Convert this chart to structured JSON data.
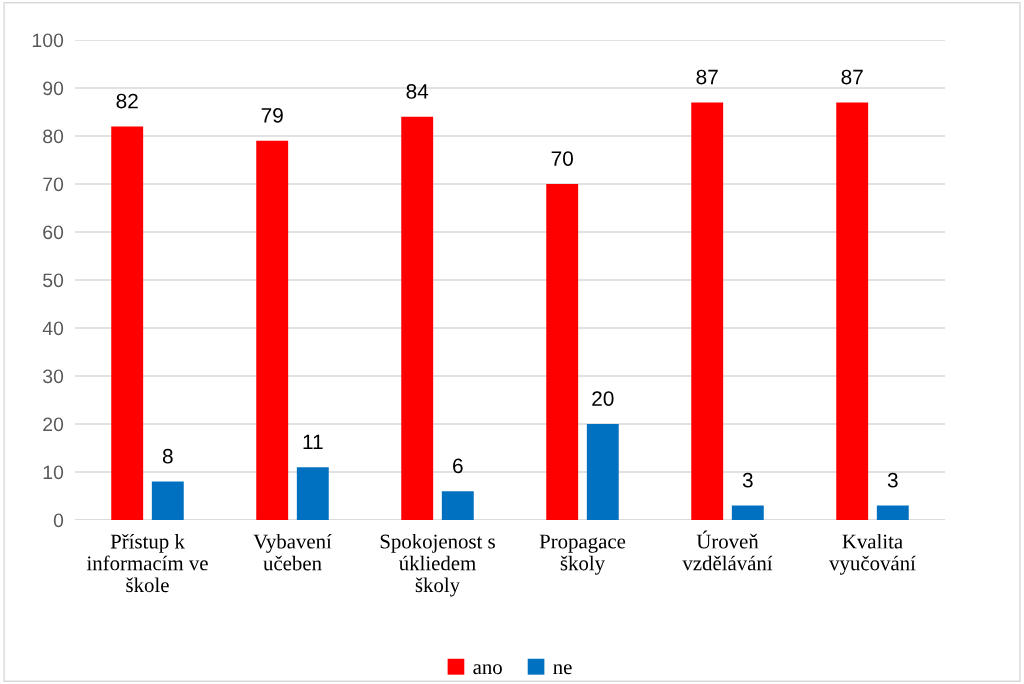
{
  "chart_data": {
    "type": "bar",
    "categories": [
      "Přístup k informacím ve škole",
      "Vybavení učeben",
      "Spokojenost s úkliedem školy",
      "Propagace školy",
      "Úroveň vzdělávání",
      "Kvalita vyučování"
    ],
    "series": [
      {
        "name": "ano",
        "color": "#ff0000",
        "values": [
          82,
          79,
          84,
          70,
          87,
          87
        ]
      },
      {
        "name": "ne",
        "color": "#0070c0",
        "values": [
          8,
          11,
          6,
          20,
          3,
          3
        ]
      }
    ],
    "ylim": [
      0,
      100
    ],
    "yticks": [
      0,
      10,
      20,
      30,
      40,
      50,
      60,
      70,
      80,
      90,
      100
    ],
    "grid": "y",
    "legend": "bottom",
    "data_labels": true
  }
}
